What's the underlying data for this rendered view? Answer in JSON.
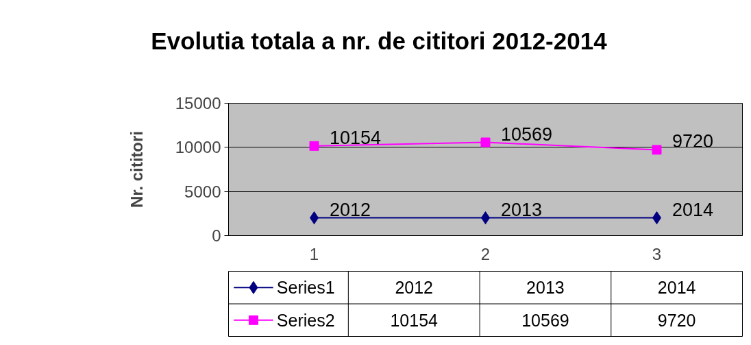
{
  "chart_data": {
    "type": "line",
    "title": "Evolutia totala a nr. de cititori 2012-2014",
    "ylabel": "Nr. cititori",
    "categories": [
      "1",
      "2",
      "3"
    ],
    "series": [
      {
        "name": "Series1",
        "color": "#000080",
        "marker": "diamond",
        "values": [
          2012,
          2013,
          2014
        ],
        "value_labels": [
          "2012",
          "2013",
          "2014"
        ]
      },
      {
        "name": "Series2",
        "color": "#ff00ff",
        "marker": "square",
        "values": [
          10154,
          10569,
          9720
        ],
        "value_labels": [
          "10154",
          "10569",
          "9720"
        ]
      }
    ],
    "ylim": [
      0,
      15000
    ],
    "yticks": [
      0,
      5000,
      10000,
      15000
    ],
    "grid": "y",
    "legend": "bottom",
    "annotations": [
      "2012",
      "2013",
      "2014",
      "10154",
      "10569",
      "9720"
    ]
  }
}
